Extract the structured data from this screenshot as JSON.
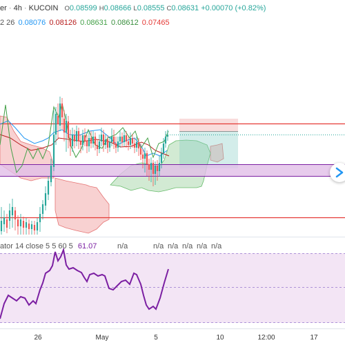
{
  "header": {
    "symbol_tail": "er",
    "timeframe": "4h",
    "exchange": "KUCOIN",
    "open_label": "O",
    "open": "0.08599",
    "high_label": "H",
    "high": "0.08666",
    "low_label": "L",
    "low": "0.08555",
    "close_label": "C",
    "close": "0.08631",
    "change": "+0.00070 (+0.82%)"
  },
  "ichimoku": {
    "params_tail": "2 26",
    "values": [
      "0.08076",
      "0.08126",
      "0.08631",
      "0.08612",
      "0.07465"
    ]
  },
  "oscillator": {
    "label": "ator 14 close 5 5 60 5",
    "value": "61.07",
    "na_values": [
      "n/a",
      "n/a",
      "n/a",
      "n/a",
      "n/a",
      "n/a"
    ]
  },
  "x_axis": {
    "labels": [
      "26",
      "May",
      "5",
      "10",
      "12:00",
      "17"
    ]
  },
  "colors": {
    "up": "#26a69a",
    "down": "#ef5350",
    "blue": "#2196f3",
    "red_line": "#e53935",
    "purple": "#7b1fa2",
    "osc_bg": "#f3e5f5",
    "zone": "#e1bee7"
  },
  "nav_button": {
    "icon": "right-arrow-icon"
  }
}
